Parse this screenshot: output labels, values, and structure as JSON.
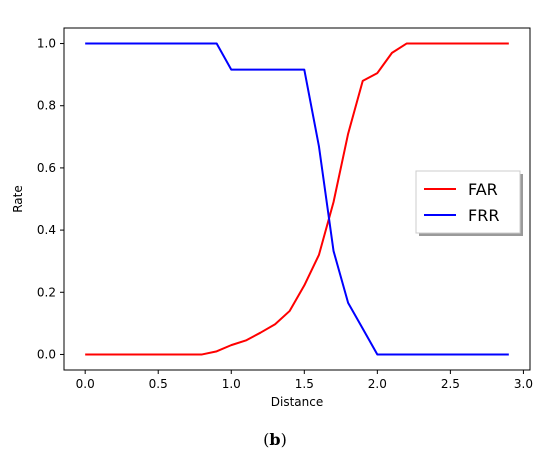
{
  "chart_data": {
    "type": "line",
    "xlabel": "Distance",
    "ylabel": "Rate",
    "xlim": [
      -0.145,
      3.045
    ],
    "ylim": [
      -0.05,
      1.05
    ],
    "xticks": [
      0.0,
      0.5,
      1.0,
      1.5,
      2.0,
      2.5,
      3.0
    ],
    "yticks": [
      0.0,
      0.2,
      0.4,
      0.6,
      0.8,
      1.0
    ],
    "xtick_labels": [
      "0.0",
      "0.5",
      "1.0",
      "1.5",
      "2.0",
      "2.5",
      "3.0"
    ],
    "ytick_labels": [
      "0.0",
      "0.2",
      "0.4",
      "0.6",
      "0.8",
      "1.0"
    ],
    "legend_position": "center-right",
    "grid": false,
    "series": [
      {
        "name": "FAR",
        "color": "#ff0000",
        "x": [
          0.0,
          0.1,
          0.2,
          0.3,
          0.4,
          0.5,
          0.6,
          0.7,
          0.8,
          0.9,
          1.0,
          1.1,
          1.2,
          1.3,
          1.4,
          1.5,
          1.6,
          1.7,
          1.8,
          1.9,
          2.0,
          2.1,
          2.2,
          2.3,
          2.4,
          2.5,
          2.6,
          2.7,
          2.8,
          2.9
        ],
        "y": [
          0.0,
          0.0,
          0.0,
          0.0,
          0.0,
          0.0,
          0.0,
          0.0,
          0.0,
          0.01,
          0.03,
          0.045,
          0.07,
          0.097,
          0.14,
          0.222,
          0.32,
          0.49,
          0.71,
          0.88,
          0.905,
          0.97,
          1.0,
          1.0,
          1.0,
          1.0,
          1.0,
          1.0,
          1.0,
          1.0
        ]
      },
      {
        "name": "FRR",
        "color": "#0000ff",
        "x": [
          0.0,
          0.1,
          0.2,
          0.3,
          0.4,
          0.5,
          0.6,
          0.7,
          0.8,
          0.9,
          1.0,
          1.1,
          1.2,
          1.3,
          1.4,
          1.5,
          1.6,
          1.7,
          1.8,
          1.9,
          2.0,
          2.1,
          2.2,
          2.3,
          2.4,
          2.5,
          2.6,
          2.7,
          2.8,
          2.9
        ],
        "y": [
          1.0,
          1.0,
          1.0,
          1.0,
          1.0,
          1.0,
          1.0,
          1.0,
          1.0,
          1.0,
          0.916,
          0.916,
          0.916,
          0.916,
          0.916,
          0.916,
          0.67,
          0.333,
          0.166,
          0.083,
          0.0,
          0.0,
          0.0,
          0.0,
          0.0,
          0.0,
          0.0,
          0.0,
          0.0,
          0.0
        ]
      }
    ]
  },
  "caption": {
    "open": "(",
    "letter": "b",
    "close": ")"
  }
}
